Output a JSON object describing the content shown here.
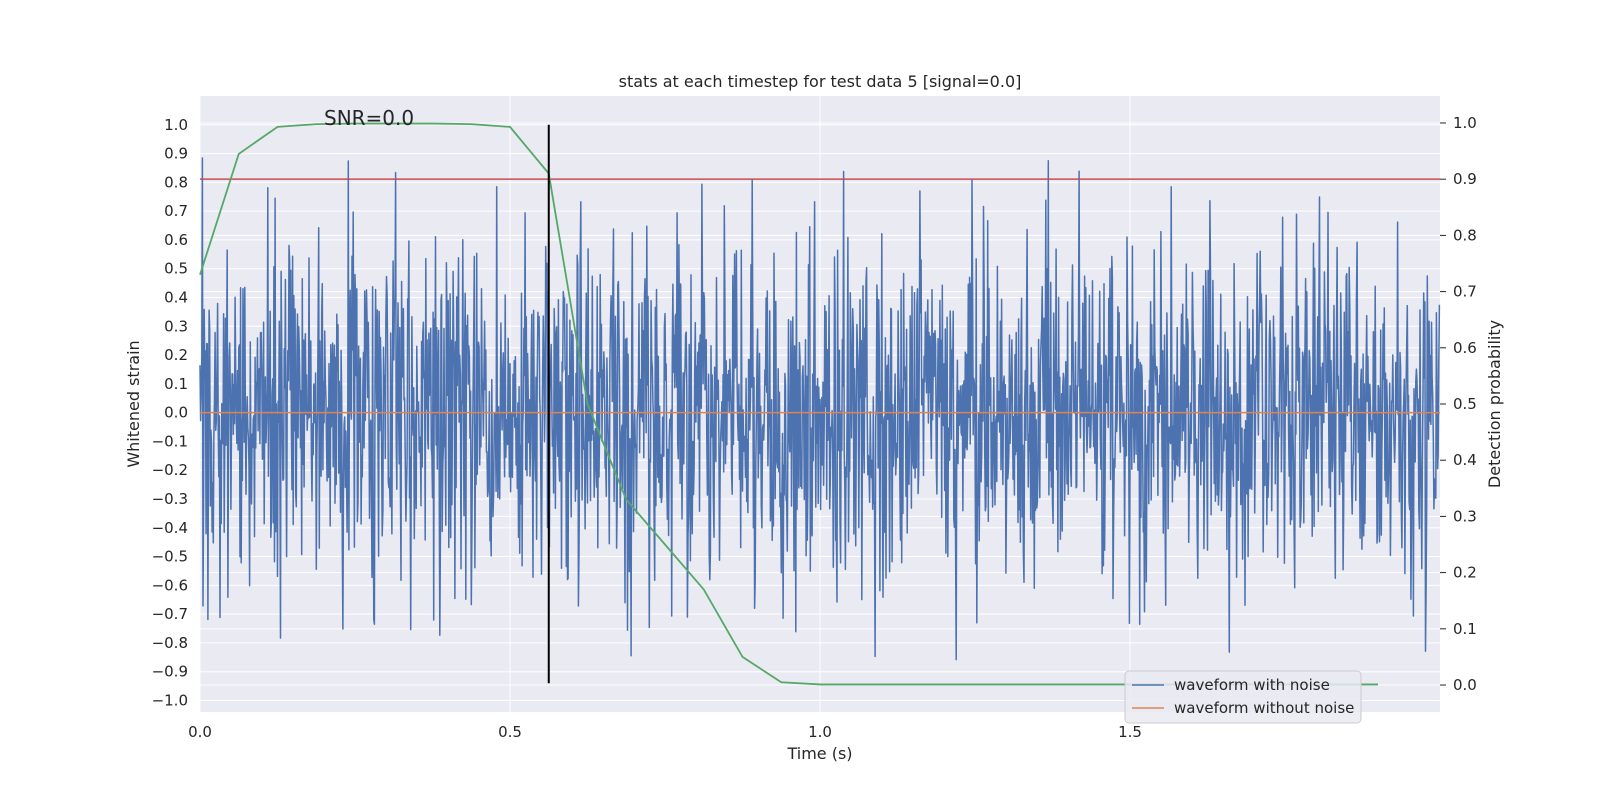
{
  "chart_data": {
    "type": "line",
    "title": "stats at each timestep for test data 5 [signal=0.0]",
    "xlabel": "Time (s)",
    "ylabel_left": "Whitened strain",
    "ylabel_right": "Detection probability",
    "xlim": [
      0.0,
      2.0
    ],
    "ylim_left": [
      -1.04,
      1.1
    ],
    "ylim_right": [
      -0.048,
      1.048
    ],
    "x_ticks": [
      "0.0",
      "0.5",
      "1.0",
      "1.5"
    ],
    "x_tick_values": [
      0.0,
      0.5,
      1.0,
      1.5
    ],
    "y_ticks_left": [
      "1.0",
      "0.9",
      "0.8",
      "0.7",
      "0.6",
      "0.5",
      "0.4",
      "0.3",
      "0.2",
      "0.1",
      "0.0",
      "−0.1",
      "−0.2",
      "−0.3",
      "−0.4",
      "−0.5",
      "−0.6",
      "−0.7",
      "−0.8",
      "−0.9",
      "−1.0"
    ],
    "y_tick_values_left": [
      1.0,
      0.9,
      0.8,
      0.7,
      0.6,
      0.5,
      0.4,
      0.3,
      0.2,
      0.1,
      0.0,
      -0.1,
      -0.2,
      -0.3,
      -0.4,
      -0.5,
      -0.6,
      -0.7,
      -0.8,
      -0.9,
      -1.0
    ],
    "y_ticks_right": [
      "1.0",
      "0.9",
      "0.8",
      "0.7",
      "0.6",
      "0.5",
      "0.4",
      "0.3",
      "0.2",
      "0.1",
      "0.0"
    ],
    "y_tick_values_right": [
      1.0,
      0.9,
      0.8,
      0.7,
      0.6,
      0.5,
      0.4,
      0.3,
      0.2,
      0.1,
      0.0
    ],
    "annotation": "SNR=0.0",
    "annotation_pos": {
      "x": 0.2,
      "y": 1.0
    },
    "grid": true,
    "legend_position": "lower-right",
    "series": [
      {
        "name": "waveform with noise",
        "axis": "left",
        "color": "#4c72b0",
        "sample_rate": 1024,
        "seed": 5,
        "amplitude": 0.3,
        "duration_s": 2.0
      },
      {
        "name": "waveform without noise",
        "axis": "left",
        "color": "#dd8452",
        "x": [
          0.0,
          2.0
        ],
        "y": [
          0.0,
          0.0
        ]
      },
      {
        "name": "detection probability",
        "axis": "right",
        "color": "#55a868",
        "x": [
          0.0,
          0.0625,
          0.125,
          0.1875,
          0.25,
          0.3125,
          0.375,
          0.4375,
          0.5,
          0.5625,
          0.625,
          0.6875,
          0.75,
          0.8125,
          0.875,
          0.9375,
          1.0,
          1.0625,
          1.125,
          1.1875,
          1.25,
          1.3125,
          1.375,
          1.4375,
          1.5,
          1.5625,
          1.625,
          1.6875,
          1.75,
          1.8125,
          1.875,
          1.9
        ],
        "y": [
          0.73,
          0.945,
          0.993,
          0.998,
          0.999,
          0.999,
          0.999,
          0.998,
          0.993,
          0.91,
          0.5,
          0.33,
          0.25,
          0.17,
          0.05,
          0.005,
          0.001,
          0.001,
          0.001,
          0.001,
          0.001,
          0.001,
          0.001,
          0.001,
          0.001,
          0.001,
          0.001,
          0.001,
          0.001,
          0.001,
          0.001,
          0.001
        ]
      }
    ],
    "hlines": [
      {
        "name": "detection threshold",
        "axis": "right",
        "y": 0.9,
        "color": "#c44e52"
      }
    ],
    "vlines": [
      {
        "name": "detection time",
        "x": 0.5625,
        "y_range": [
          -0.94,
          1.0
        ],
        "color": "#000000"
      }
    ]
  }
}
